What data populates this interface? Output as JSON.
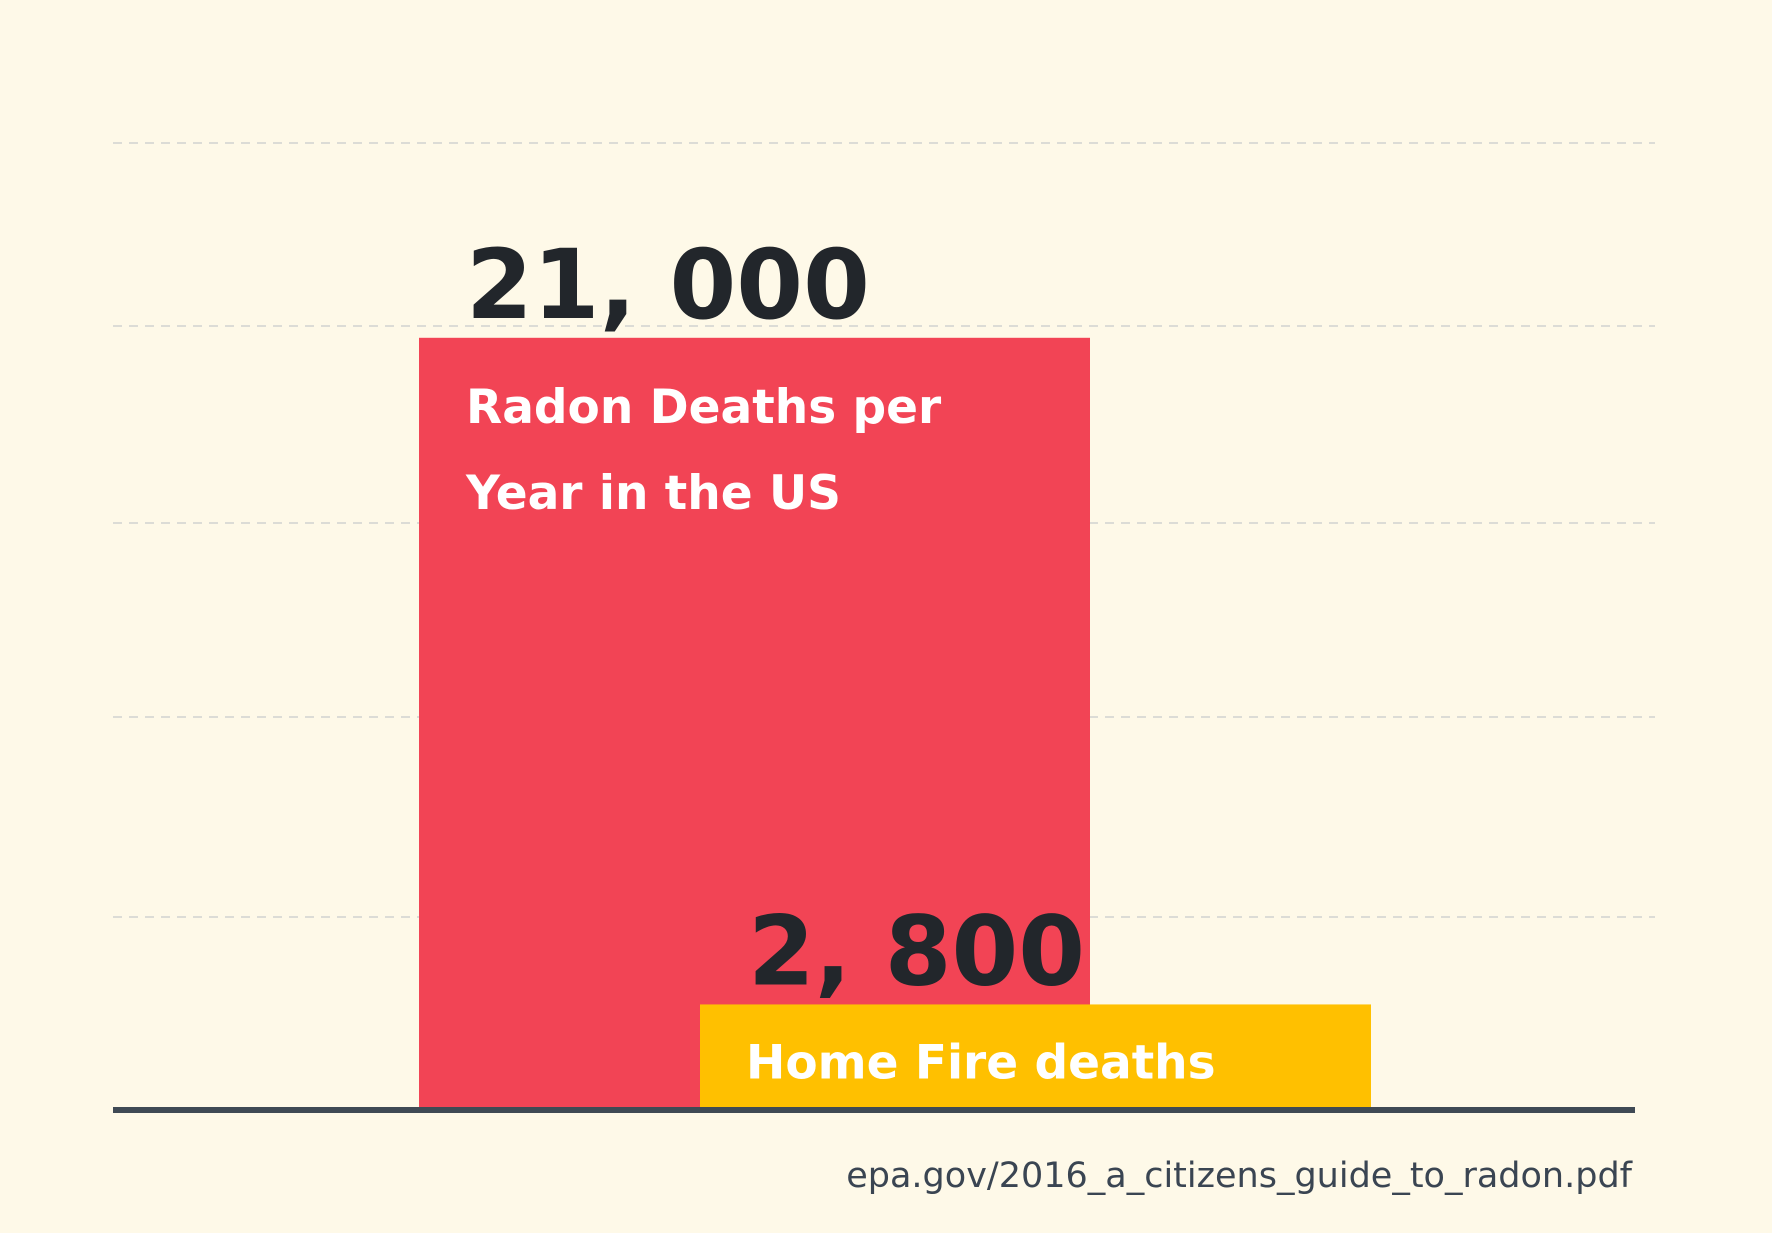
{
  "chart_data": {
    "type": "bar",
    "categories": [
      "Radon Deaths per Year in the US",
      "Home Fire deaths"
    ],
    "series": [
      {
        "values": [
          21000,
          2800
        ]
      }
    ],
    "value_labels": [
      "21, 000",
      "2, 800"
    ],
    "bar_label_lines": [
      [
        "Radon Deaths per",
        "Year in the US"
      ],
      [
        "Home Fire deaths"
      ]
    ],
    "source": "epa.gov/2016_a_citizens_guide_to_radon.pdf",
    "ylim": [
      0,
      26400
    ],
    "grid": true,
    "grid_style": "dashed",
    "y_axis_ticks_shown": false,
    "bar_overlap": true
  },
  "colors": {
    "background": "#fef9e8",
    "bars": [
      "#f24455",
      "#ffc000"
    ],
    "bar_label": "#ffffff",
    "value_label": "#22262b",
    "baseline": "#3f4a54",
    "grid": "#dcdcd6",
    "source": "#3a4552"
  }
}
